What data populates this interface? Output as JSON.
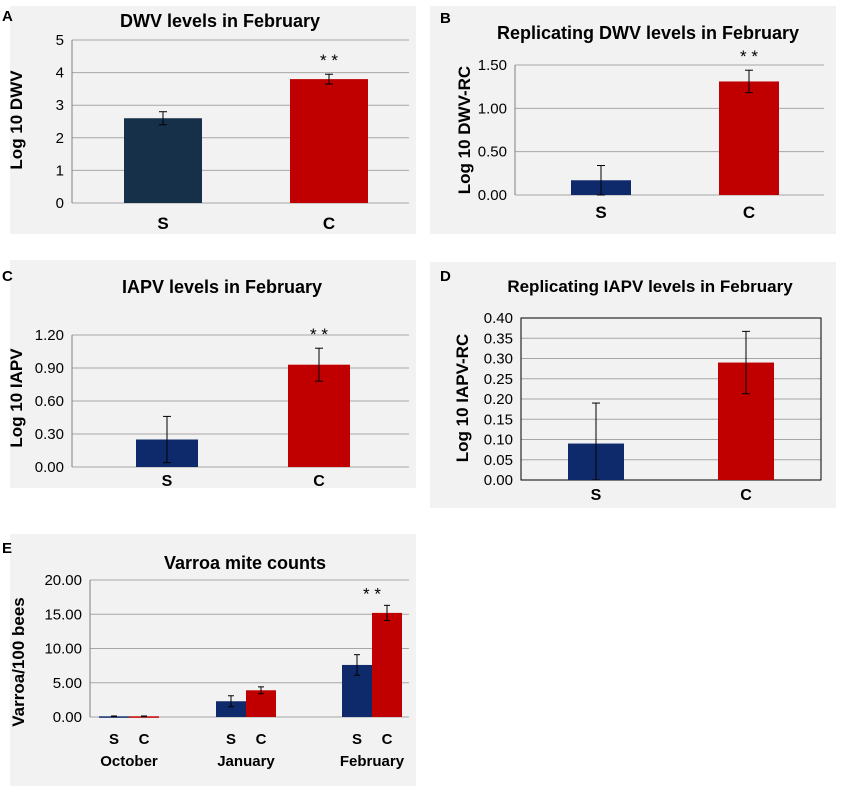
{
  "colors": {
    "s_dark": "#17304a",
    "s_blue": "#0f2a6b",
    "c_red": "#c00000",
    "grid": "#a6a6a6",
    "panel_bg": "#f2f2f2"
  },
  "chart_data": [
    {
      "panel_label": "A",
      "type": "bar",
      "title": "DWV levels in February",
      "ylabel": "Log 10 DWV",
      "categories": [
        "S",
        "C"
      ],
      "values": [
        2.6,
        3.8
      ],
      "errors": [
        0.2,
        0.15
      ],
      "bar_colors": [
        "#17304a",
        "#c00000"
      ],
      "ylim": [
        0,
        5
      ],
      "yticks": [
        "0",
        "1",
        "2",
        "3",
        "4",
        "5"
      ],
      "annotation": "* *",
      "annotation_category": "C",
      "grid": true
    },
    {
      "panel_label": "B",
      "type": "bar",
      "title": "Replicating DWV levels in February",
      "ylabel": "Log 10 DWV-RC",
      "categories": [
        "S",
        "C"
      ],
      "values": [
        0.17,
        1.31
      ],
      "errors": [
        0.17,
        0.13
      ],
      "bar_colors": [
        "#0f2a6b",
        "#c00000"
      ],
      "ylim": [
        0,
        1.5
      ],
      "yticks": [
        "0.00",
        "0.50",
        "1.00",
        "1.50"
      ],
      "annotation": "* *",
      "annotation_category": "C",
      "grid": true
    },
    {
      "panel_label": "C",
      "type": "bar",
      "title": "IAPV levels in February",
      "ylabel": "Log 10 IAPV",
      "categories": [
        "S",
        "C"
      ],
      "values": [
        0.25,
        0.93
      ],
      "errors": [
        0.21,
        0.15
      ],
      "bar_colors": [
        "#0f2a6b",
        "#c00000"
      ],
      "ylim": [
        0,
        1.2
      ],
      "yticks": [
        "0.00",
        "0.30",
        "0.60",
        "0.90",
        "1.20"
      ],
      "annotation": "* *",
      "annotation_category": "C",
      "grid": true
    },
    {
      "panel_label": "D",
      "type": "bar",
      "title": "Replicating IAPV levels in February",
      "ylabel": "Log 10 IAPV-RC",
      "categories": [
        "S",
        "C"
      ],
      "values": [
        0.09,
        0.29
      ],
      "errors": [
        0.1,
        0.077
      ],
      "bar_colors": [
        "#0f2a6b",
        "#c00000"
      ],
      "ylim": [
        0,
        0.4
      ],
      "yticks": [
        "0.00",
        "0.05",
        "0.10",
        "0.15",
        "0.20",
        "0.25",
        "0.30",
        "0.35",
        "0.40"
      ],
      "annotation": "",
      "grid": true
    },
    {
      "panel_label": "E",
      "type": "bar",
      "title": "Varroa mite counts",
      "ylabel": "Varroa/100 bees",
      "groups": [
        "October",
        "January",
        "February"
      ],
      "subcategories": [
        "S",
        "C"
      ],
      "series": [
        {
          "values": [
            0.1,
            2.3,
            7.6
          ],
          "errors": [
            0.05,
            0.8,
            1.5
          ],
          "color": "#0f2a6b"
        },
        {
          "values": [
            0.1,
            3.9,
            15.2
          ],
          "errors": [
            0.05,
            0.5,
            1.1
          ],
          "color": "#c00000"
        }
      ],
      "ylim": [
        0,
        20
      ],
      "yticks": [
        "0.00",
        "5.00",
        "10.00",
        "15.00",
        "20.00"
      ],
      "annotation": "* *",
      "annotation_group": "February",
      "grid": true
    }
  ]
}
